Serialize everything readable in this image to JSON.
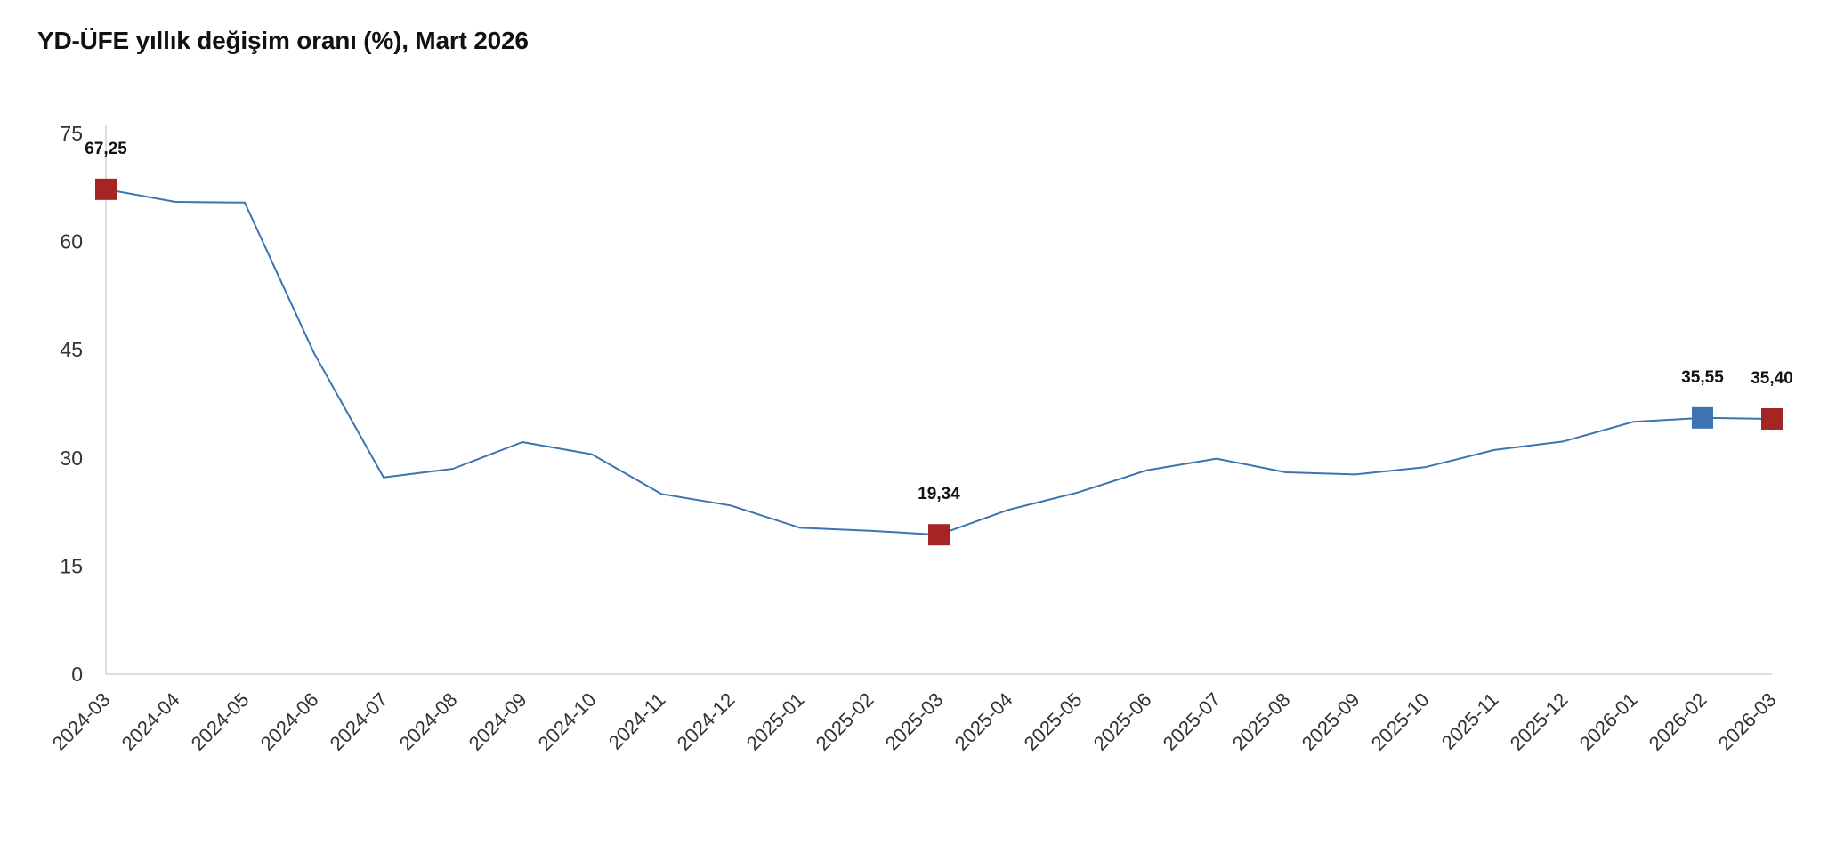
{
  "chart_data": {
    "type": "line",
    "title": "YD-ÜFE yıllık değişim oranı (%), Mart 2026",
    "xlabel": "",
    "ylabel": "",
    "ylim": [
      0,
      75
    ],
    "yticks": [
      "0",
      "15",
      "30",
      "45",
      "60",
      "75"
    ],
    "grid": false,
    "x": [
      "2024-03",
      "2024-04",
      "2024-05",
      "2024-06",
      "2024-07",
      "2024-08",
      "2024-09",
      "2024-10",
      "2024-11",
      "2024-12",
      "2025-01",
      "2025-02",
      "2025-03",
      "2025-04",
      "2025-05",
      "2025-06",
      "2025-07",
      "2025-08",
      "2025-09",
      "2025-10",
      "2025-11",
      "2025-12",
      "2026-01",
      "2026-02",
      "2026-03"
    ],
    "values": [
      67.25,
      65.5,
      65.4,
      44.5,
      27.3,
      28.5,
      32.2,
      30.5,
      25.0,
      23.4,
      20.3,
      19.9,
      19.34,
      22.8,
      25.2,
      28.3,
      29.9,
      28.0,
      27.7,
      28.7,
      31.1,
      32.3,
      35.0,
      35.55,
      35.4
    ],
    "series_color": "#3d73b0",
    "highlights": [
      {
        "x": "2024-03",
        "value": 67.25,
        "label": "67,25",
        "color": "#a52525"
      },
      {
        "x": "2025-03",
        "value": 19.34,
        "label": "19,34",
        "color": "#a52525"
      },
      {
        "x": "2026-02",
        "value": 35.55,
        "label": "35,55",
        "color": "#3d73b0"
      },
      {
        "x": "2026-03",
        "value": 35.4,
        "label": "35,40",
        "color": "#a52525"
      }
    ]
  }
}
